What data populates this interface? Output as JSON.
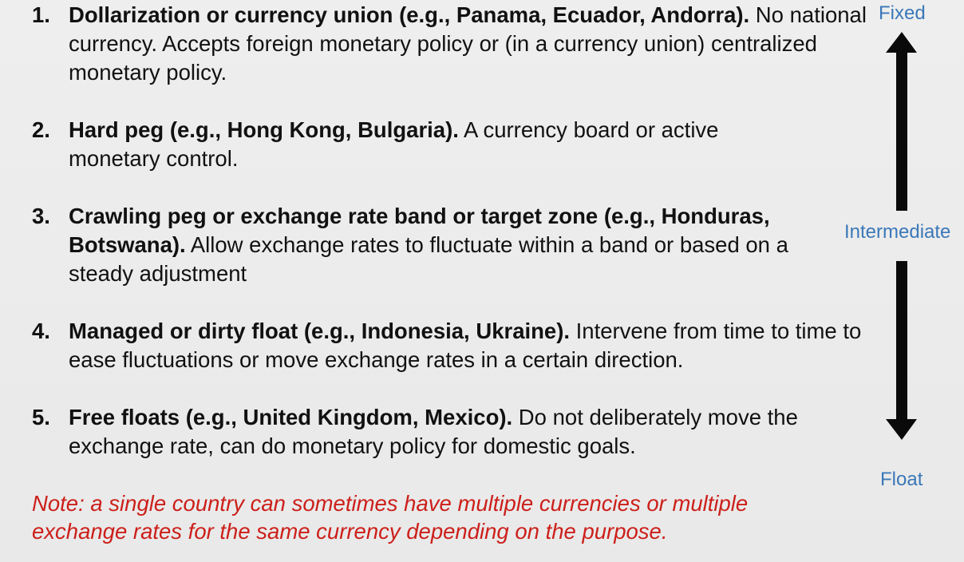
{
  "items": [
    {
      "number": "1.",
      "bold": "Dollarization or currency union (e.g., Panama, Ecuador, Andorra).",
      "text": " No national currency. Accepts foreign monetary policy or (in a currency union) centralized monetary policy."
    },
    {
      "number": "2.",
      "bold": "Hard peg (e.g., Hong Kong, Bulgaria).",
      "text": " A currency board or active monetary control."
    },
    {
      "number": "3.",
      "bold": "Crawling peg or exchange rate band or target zone (e.g., Honduras, Botswana).",
      "text": " Allow exchange rates to fluctuate within a band or based on a steady adjustment"
    },
    {
      "number": "4.",
      "bold": "Managed or dirty float (e.g., Indonesia, Ukraine).",
      "text": " Intervene from time to time to ease fluctuations or move exchange rates in a certain direction."
    },
    {
      "number": "5.",
      "bold": "Free floats (e.g., United Kingdom, Mexico).",
      "text": " Do not deliberately move the exchange rate, can do monetary policy for domestic goals."
    }
  ],
  "note": "Note: a single country can sometimes have multiple currencies or multiple exchange rates for the same currency depending on the purpose.",
  "scale": {
    "top": "Fixed",
    "middle": "Intermediate",
    "bottom": "Float"
  },
  "colors": {
    "note": "#cc1f1a",
    "scale_label": "#3b78b8",
    "arrow": "#0a0a0a",
    "background": "#ececec"
  }
}
